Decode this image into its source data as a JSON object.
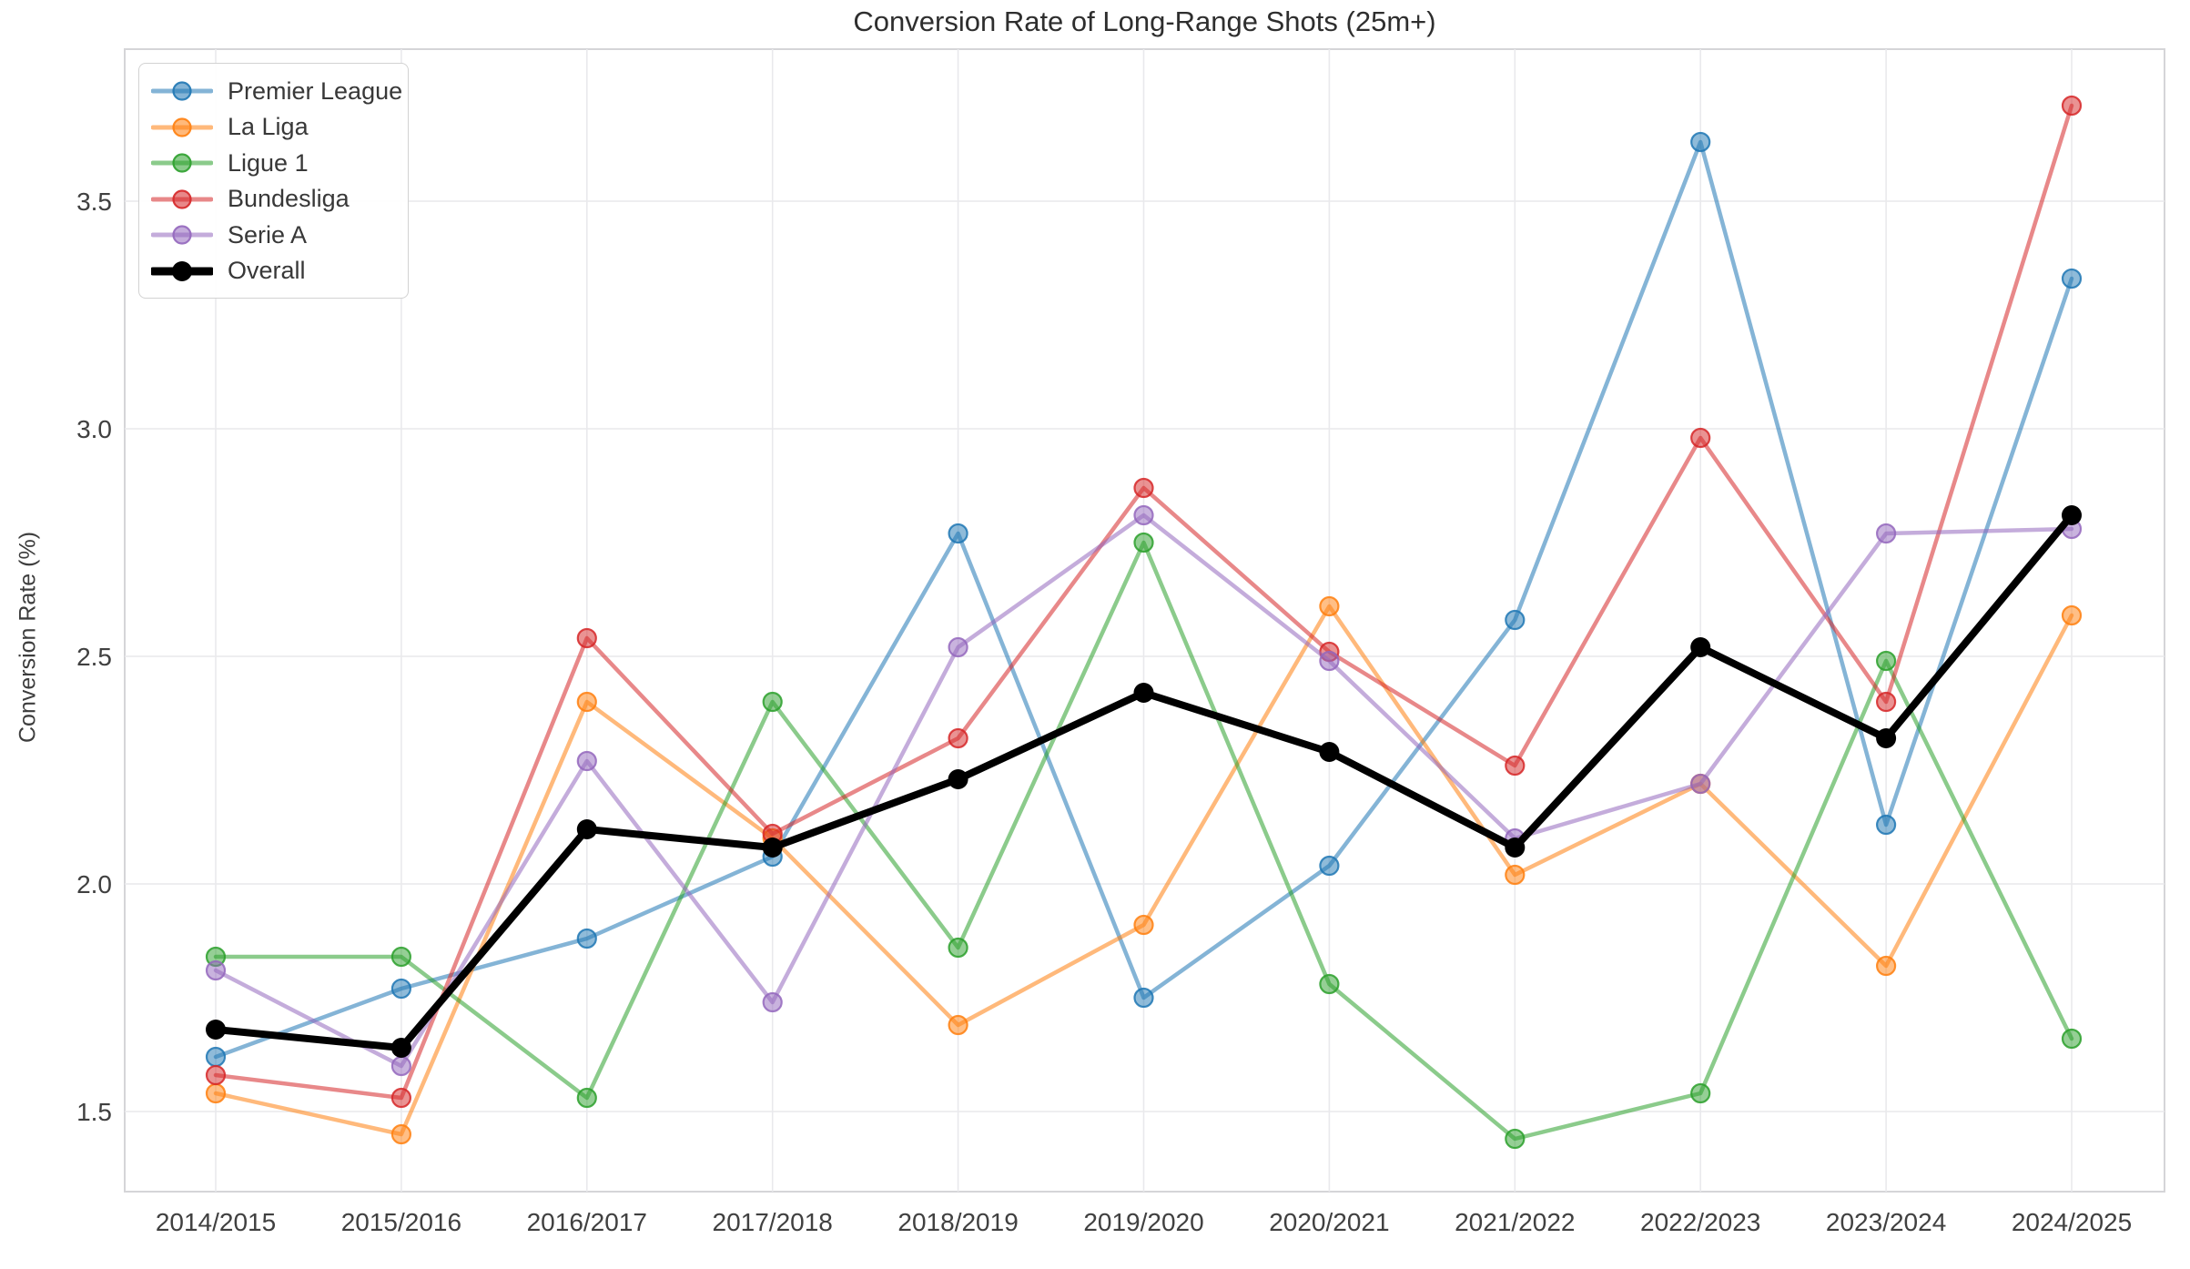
{
  "title": "Conversion Rate of Long-Range Shots (25m+)",
  "y_axis_label": "Conversion Rate (%)",
  "chart_data": {
    "type": "line",
    "title": "Conversion Rate of Long-Range Shots (25m+)",
    "xlabel": "",
    "ylabel": "Conversion Rate (%)",
    "grid": true,
    "legend_position": "upper left",
    "background_color": "#ffffff",
    "gridline_color": "#e9e9ec",
    "spine_color": "#d5d5d8",
    "tick_text_color": "#404040",
    "categories": [
      "2014/2015",
      "2015/2016",
      "2016/2017",
      "2017/2018",
      "2018/2019",
      "2019/2020",
      "2020/2021",
      "2021/2022",
      "2022/2023",
      "2023/2024",
      "2024/2025"
    ],
    "y_ticks": [
      1.5,
      2.0,
      2.5,
      3.0,
      3.5
    ],
    "y_tick_labels": [
      "1.5",
      "2.0",
      "2.5",
      "3.0",
      "3.5"
    ],
    "ylim": [
      1.32,
      3.83
    ],
    "series": [
      {
        "name": "Premier League",
        "color": "#1f77b4",
        "alpha": 0.55,
        "line_width": 4.5,
        "marker": "circle",
        "values": [
          1.62,
          1.77,
          1.88,
          2.06,
          2.77,
          1.75,
          2.04,
          2.58,
          3.63,
          2.13,
          3.33
        ]
      },
      {
        "name": "La Liga",
        "color": "#ff7f0e",
        "alpha": 0.55,
        "line_width": 4.5,
        "marker": "circle",
        "values": [
          1.54,
          1.45,
          2.4,
          2.1,
          1.69,
          1.91,
          2.61,
          2.02,
          2.22,
          1.82,
          2.59
        ]
      },
      {
        "name": "Ligue 1",
        "color": "#2ca02c",
        "alpha": 0.55,
        "line_width": 4.5,
        "marker": "circle",
        "values": [
          1.84,
          1.84,
          1.53,
          2.4,
          1.86,
          2.75,
          1.78,
          1.44,
          1.54,
          2.49,
          1.66
        ]
      },
      {
        "name": "Bundesliga",
        "color": "#d62728",
        "alpha": 0.55,
        "line_width": 4.5,
        "marker": "circle",
        "values": [
          1.58,
          1.53,
          2.54,
          2.11,
          2.32,
          2.87,
          2.51,
          2.26,
          2.98,
          2.4,
          3.71
        ]
      },
      {
        "name": "Serie A",
        "color": "#9467bd",
        "alpha": 0.55,
        "line_width": 4.5,
        "marker": "circle",
        "values": [
          1.81,
          1.6,
          2.27,
          1.74,
          2.52,
          2.81,
          2.49,
          2.1,
          2.22,
          2.77,
          2.78
        ]
      },
      {
        "name": "Overall",
        "color": "#000000",
        "alpha": 1.0,
        "line_width": 8,
        "marker": "circle",
        "values": [
          1.68,
          1.64,
          2.12,
          2.08,
          2.23,
          2.42,
          2.29,
          2.08,
          2.52,
          2.32,
          2.81
        ]
      }
    ]
  }
}
